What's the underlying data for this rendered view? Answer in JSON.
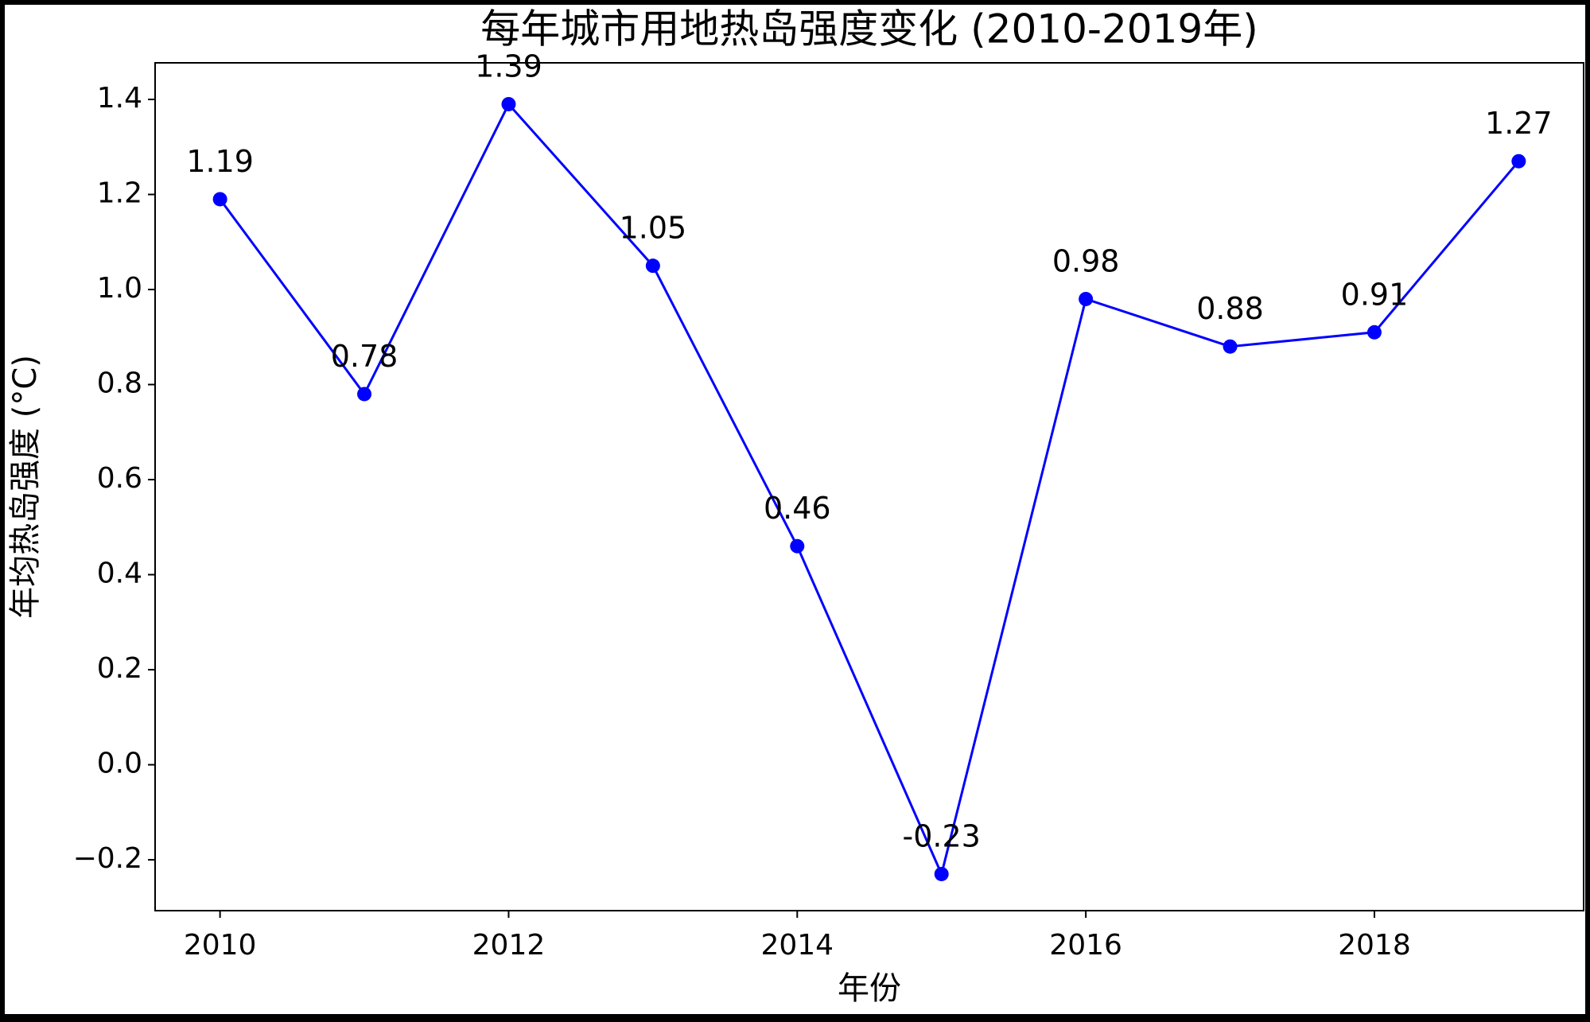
{
  "chart_data": {
    "type": "line",
    "title": "每年城市用地热岛强度变化 (2010-2019年)",
    "x_label": "年份",
    "y_label": "年均热岛强度 (°C)",
    "x": [
      2010,
      2011,
      2012,
      2013,
      2014,
      2015,
      2016,
      2017,
      2018,
      2019
    ],
    "series": [
      {
        "color": "#0000ff",
        "values": [
          1.19,
          0.78,
          1.39,
          1.05,
          0.46,
          -0.23,
          0.98,
          0.88,
          0.91,
          1.27
        ]
      }
    ],
    "xlim": [
      2009.55,
      2019.45
    ],
    "xticks": [
      2010,
      2012,
      2014,
      2016,
      2018
    ],
    "ylim": [
      -0.307,
      1.477
    ],
    "yticks": [
      {
        "value": -0.2,
        "label": "−0.2"
      },
      {
        "value": 0,
        "label": "0.0"
      },
      0.2,
      0.4,
      0.6,
      0.8,
      {
        "value": 1,
        "label": "1.0"
      },
      1.2,
      1.4
    ],
    "grid": false
  }
}
